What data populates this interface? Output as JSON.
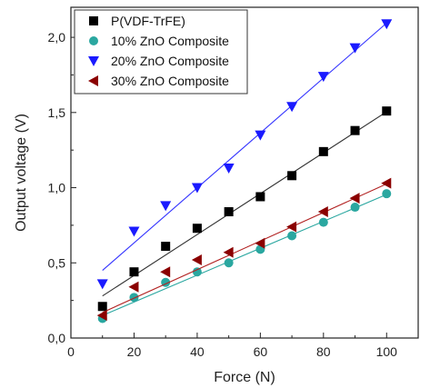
{
  "chart_data": {
    "type": "scatter",
    "title": "",
    "xlabel": "Force (N)",
    "ylabel": "Output voltage (V)",
    "xlim": [
      0,
      110
    ],
    "ylim": [
      0,
      2.2
    ],
    "x_ticks": [
      0,
      20,
      40,
      60,
      80,
      100
    ],
    "x_tick_labels": [
      "0",
      "20",
      "40",
      "60",
      "80",
      "100"
    ],
    "y_ticks": [
      0,
      0.5,
      1.0,
      1.5,
      2.0
    ],
    "y_tick_labels": [
      "0,0",
      "0,5",
      "1,0",
      "1,5",
      "2,0"
    ],
    "grid": false,
    "legend_position": "top-left",
    "x": [
      10,
      20,
      30,
      40,
      50,
      60,
      70,
      80,
      90,
      100
    ],
    "series": [
      {
        "name": "P(VDF-TrFE)",
        "marker": "square",
        "color": "#000000",
        "line_color": "#333333",
        "values": [
          0.21,
          0.44,
          0.61,
          0.73,
          0.84,
          0.94,
          1.08,
          1.24,
          1.38,
          1.51
        ],
        "fit": [
          0.28,
          1.505
        ]
      },
      {
        "name": "10% ZnO Composite",
        "marker": "circle",
        "color": "#2aa7a0",
        "line_color": "#2aa7a0",
        "values": [
          0.13,
          0.27,
          0.37,
          0.44,
          0.5,
          0.59,
          0.68,
          0.77,
          0.87,
          0.96
        ],
        "fit": [
          0.15,
          0.955
        ]
      },
      {
        "name": "20% ZnO Composite",
        "marker": "triangle-down",
        "color": "#1a1aff",
        "line_color": "#3333ff",
        "values": [
          0.36,
          0.71,
          0.88,
          1.0,
          1.13,
          1.35,
          1.54,
          1.74,
          1.93,
          2.09
        ],
        "fit": [
          0.45,
          2.095
        ]
      },
      {
        "name": "30% ZnO Composite",
        "marker": "triangle-left",
        "color": "#8b0000",
        "line_color": "#b22222",
        "values": [
          0.15,
          0.34,
          0.44,
          0.52,
          0.57,
          0.63,
          0.74,
          0.84,
          0.93,
          1.03
        ],
        "fit": [
          0.17,
          1.025
        ]
      }
    ]
  }
}
